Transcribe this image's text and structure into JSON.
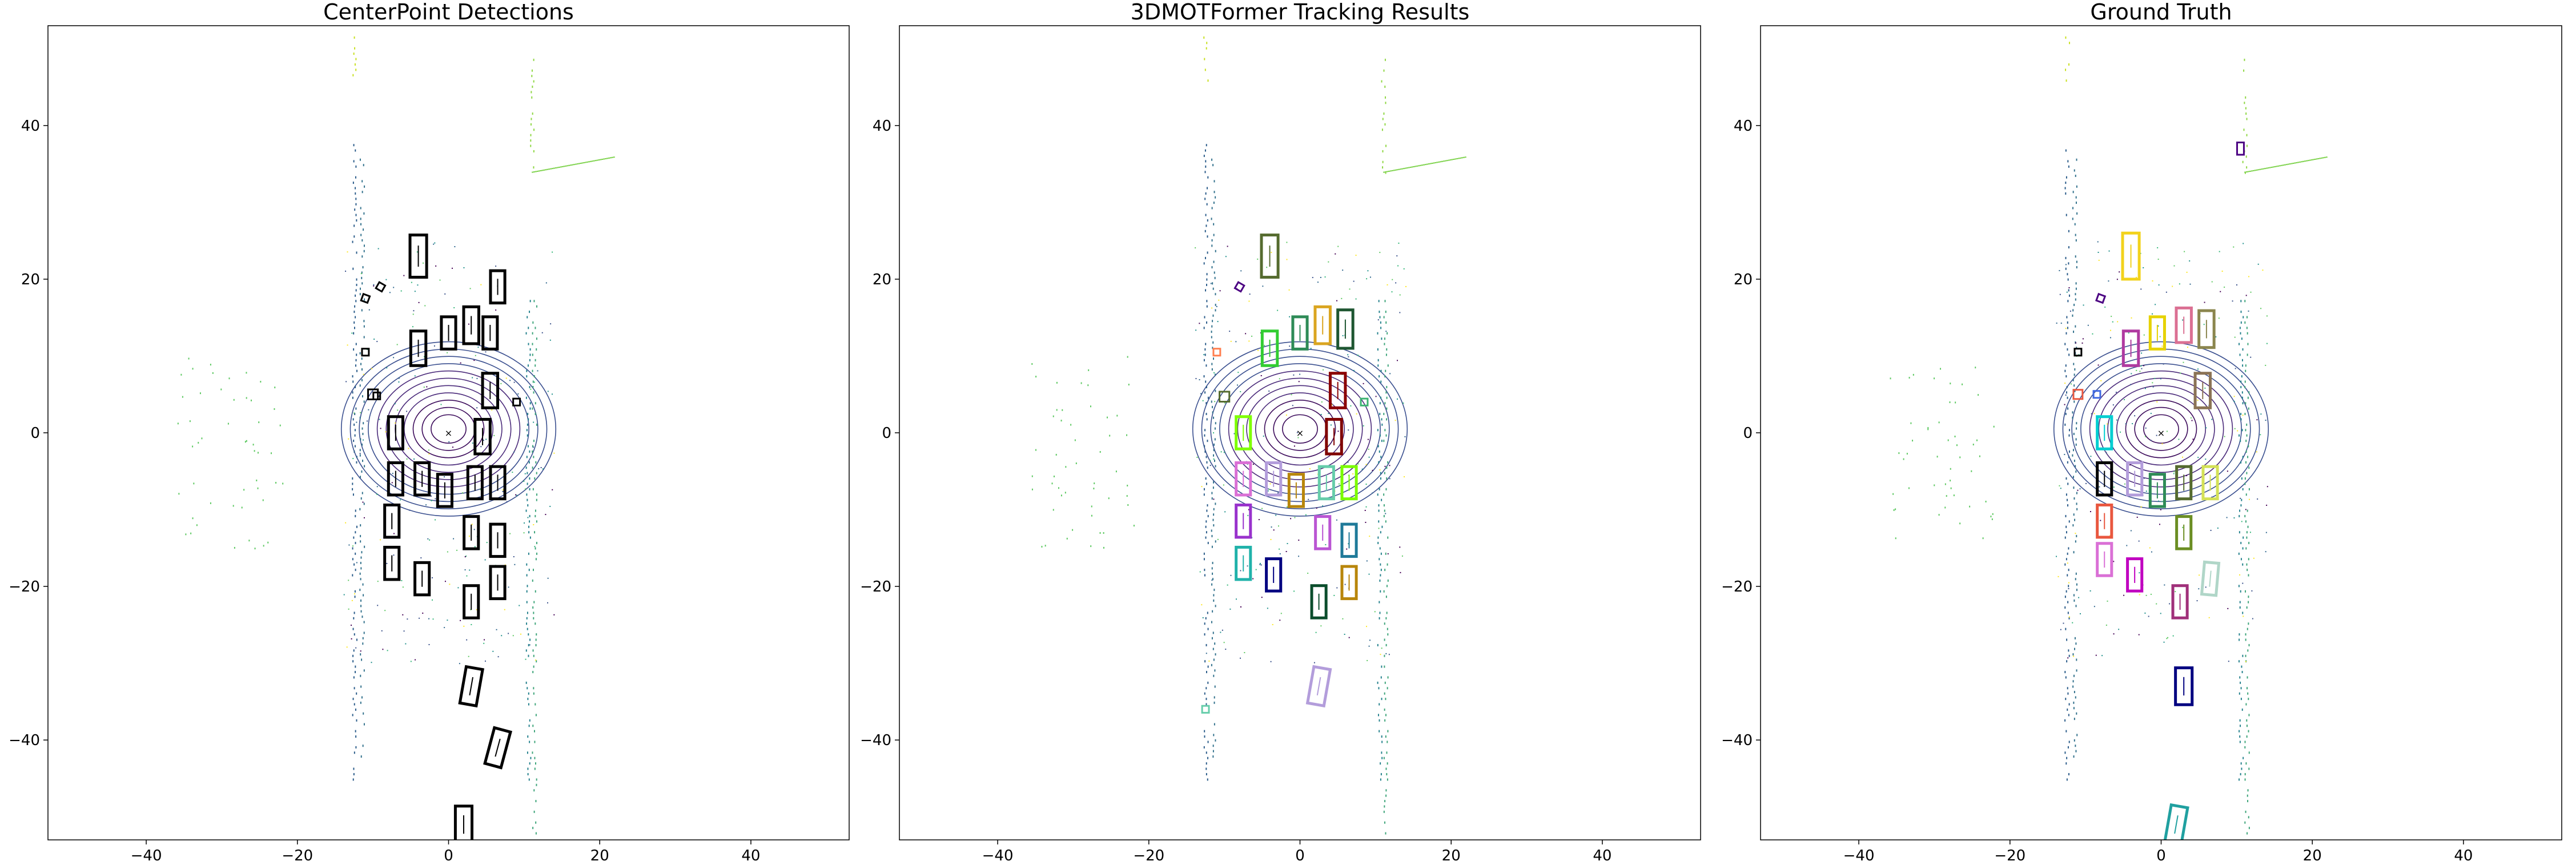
{
  "chart_data": [
    {
      "type": "scatter",
      "title": "CenterPoint Detections",
      "xlabel": "",
      "ylabel": "",
      "xlim": [
        -53,
        53
      ],
      "ylim": [
        -53,
        53
      ],
      "xticks": [
        -40,
        -20,
        0,
        20,
        40
      ],
      "yticks": [
        40,
        20,
        0,
        -20,
        -40
      ],
      "xtick_labels": [
        "−40",
        "−20",
        "0",
        "20",
        "40"
      ],
      "ytick_labels": [
        "40",
        "20",
        "0",
        "−20",
        "−40"
      ],
      "grid": false,
      "box_color": "#000000",
      "boxes": [
        {
          "x": -4,
          "y": 23,
          "w": 2.2,
          "l": 5.5,
          "angle": 0
        },
        {
          "x": -4,
          "y": 11,
          "w": 2.0,
          "l": 4.5,
          "angle": 0
        },
        {
          "x": 0,
          "y": 13,
          "w": 1.9,
          "l": 4.2,
          "angle": 0
        },
        {
          "x": 3,
          "y": 14,
          "w": 2.0,
          "l": 4.8,
          "angle": 0
        },
        {
          "x": 6.5,
          "y": 19,
          "w": 1.9,
          "l": 4.2,
          "angle": 0
        },
        {
          "x": 5.5,
          "y": 13,
          "w": 1.9,
          "l": 4.2,
          "angle": 0
        },
        {
          "x": 5.5,
          "y": 5.5,
          "w": 2.0,
          "l": 4.5,
          "angle": 0
        },
        {
          "x": -7,
          "y": 0,
          "w": 1.9,
          "l": 4.2,
          "angle": 0
        },
        {
          "x": 4.5,
          "y": -0.5,
          "w": 2.0,
          "l": 4.5,
          "angle": 0
        },
        {
          "x": -7,
          "y": -6,
          "w": 1.9,
          "l": 4.2,
          "angle": 0
        },
        {
          "x": -3.5,
          "y": -6,
          "w": 1.9,
          "l": 4.2,
          "angle": 0
        },
        {
          "x": -0.5,
          "y": -7.5,
          "w": 1.9,
          "l": 4.2,
          "angle": 0
        },
        {
          "x": 3.5,
          "y": -6.5,
          "w": 1.9,
          "l": 4.2,
          "angle": 0
        },
        {
          "x": 6.5,
          "y": -6.5,
          "w": 1.9,
          "l": 4.2,
          "angle": 0
        },
        {
          "x": -7.5,
          "y": -11.5,
          "w": 1.9,
          "l": 4.2,
          "angle": 0
        },
        {
          "x": 3,
          "y": -13,
          "w": 1.9,
          "l": 4.2,
          "angle": 0
        },
        {
          "x": 6.5,
          "y": -14,
          "w": 1.9,
          "l": 4.2,
          "angle": 0
        },
        {
          "x": -7.5,
          "y": -17,
          "w": 1.9,
          "l": 4.2,
          "angle": 0
        },
        {
          "x": -3.5,
          "y": -19,
          "w": 1.9,
          "l": 4.2,
          "angle": 0
        },
        {
          "x": 6.5,
          "y": -19.5,
          "w": 1.9,
          "l": 4.2,
          "angle": 0
        },
        {
          "x": 3,
          "y": -22,
          "w": 1.9,
          "l": 4.2,
          "angle": 0
        },
        {
          "x": 3,
          "y": -33,
          "w": 2.2,
          "l": 4.8,
          "angle": 10
        },
        {
          "x": 6.5,
          "y": -41,
          "w": 2.2,
          "l": 4.8,
          "angle": 15
        },
        {
          "x": 2,
          "y": -51,
          "w": 2.2,
          "l": 4.8,
          "angle": 0
        },
        {
          "x": -9,
          "y": 19,
          "w": 0.9,
          "l": 0.9,
          "angle": 30
        },
        {
          "x": -11,
          "y": 17.5,
          "w": 0.9,
          "l": 0.9,
          "angle": 20
        },
        {
          "x": -11,
          "y": 10.5,
          "w": 0.9,
          "l": 0.9,
          "angle": 0
        },
        {
          "x": -10,
          "y": 5,
          "w": 1.3,
          "l": 1.3,
          "angle": 0
        },
        {
          "x": -9.5,
          "y": 4.8,
          "w": 0.9,
          "l": 0.9,
          "angle": 0
        },
        {
          "x": 9,
          "y": 4,
          "w": 0.9,
          "l": 0.9,
          "angle": 0
        }
      ]
    },
    {
      "type": "scatter",
      "title": "3DMOTFormer Tracking Results",
      "xlabel": "",
      "ylabel": "",
      "xlim": [
        -53,
        53
      ],
      "ylim": [
        -53,
        53
      ],
      "xticks": [
        -40,
        -20,
        0,
        20,
        40
      ],
      "yticks": [
        40,
        20,
        0,
        -20,
        -40
      ],
      "xtick_labels": [
        "−40",
        "−20",
        "0",
        "20",
        "40"
      ],
      "ytick_labels": [
        "40",
        "20",
        "0",
        "−20",
        "−40"
      ],
      "grid": false,
      "boxes": [
        {
          "x": -4,
          "y": 23,
          "w": 2.2,
          "l": 5.5,
          "angle": 0,
          "color": "#556b2f"
        },
        {
          "x": -4,
          "y": 11,
          "w": 2.0,
          "l": 4.5,
          "angle": 0,
          "color": "#32cd32"
        },
        {
          "x": 0,
          "y": 13,
          "w": 1.9,
          "l": 4.2,
          "angle": 0,
          "color": "#2e8b57"
        },
        {
          "x": 3,
          "y": 14,
          "w": 2.0,
          "l": 4.8,
          "angle": 0,
          "color": "#daa520"
        },
        {
          "x": 6,
          "y": 13.5,
          "w": 2.0,
          "l": 5.0,
          "angle": 0,
          "color": "#1e5631"
        },
        {
          "x": 5,
          "y": 5.5,
          "w": 2.0,
          "l": 4.5,
          "angle": 0,
          "color": "#8b0000"
        },
        {
          "x": -7.5,
          "y": 0,
          "w": 1.9,
          "l": 4.2,
          "angle": 0,
          "color": "#7fff00"
        },
        {
          "x": 4.5,
          "y": -0.5,
          "w": 2.0,
          "l": 4.5,
          "angle": 0,
          "color": "#800000"
        },
        {
          "x": -7.5,
          "y": -6,
          "w": 1.9,
          "l": 4.2,
          "angle": 0,
          "color": "#da70d6"
        },
        {
          "x": -3.5,
          "y": -6,
          "w": 1.9,
          "l": 4.2,
          "angle": 0,
          "color": "#b39ddb"
        },
        {
          "x": -0.5,
          "y": -7.5,
          "w": 1.9,
          "l": 4.2,
          "angle": 0,
          "color": "#b8860b"
        },
        {
          "x": 3.5,
          "y": -6.5,
          "w": 1.9,
          "l": 4.2,
          "angle": 0,
          "color": "#66cdaa"
        },
        {
          "x": 6.5,
          "y": -6.5,
          "w": 1.9,
          "l": 4.2,
          "angle": 0,
          "color": "#7cfc00"
        },
        {
          "x": -7.5,
          "y": -11.5,
          "w": 1.9,
          "l": 4.2,
          "angle": 0,
          "color": "#9932cc"
        },
        {
          "x": 3,
          "y": -13,
          "w": 1.9,
          "l": 4.2,
          "angle": 0,
          "color": "#ba55d3"
        },
        {
          "x": 6.5,
          "y": -14,
          "w": 1.9,
          "l": 4.2,
          "angle": 0,
          "color": "#1f7a99"
        },
        {
          "x": -7.5,
          "y": -17,
          "w": 1.9,
          "l": 4.2,
          "angle": 0,
          "color": "#20b2aa"
        },
        {
          "x": -3.5,
          "y": -18.5,
          "w": 1.9,
          "l": 4.2,
          "angle": 0,
          "color": "#000080"
        },
        {
          "x": 6.5,
          "y": -19.5,
          "w": 1.9,
          "l": 4.2,
          "angle": 0,
          "color": "#b8860b"
        },
        {
          "x": 2.5,
          "y": -22,
          "w": 1.9,
          "l": 4.2,
          "angle": 0,
          "color": "#0b4d2c"
        },
        {
          "x": 2.5,
          "y": -33,
          "w": 2.2,
          "l": 4.8,
          "angle": 10,
          "color": "#b39ddb"
        },
        {
          "x": -12.5,
          "y": -36,
          "w": 0.9,
          "l": 0.9,
          "angle": 0,
          "color": "#66cdaa"
        },
        {
          "x": -8,
          "y": 19,
          "w": 0.9,
          "l": 0.9,
          "angle": 30,
          "color": "#4b0082"
        },
        {
          "x": -11,
          "y": 10.5,
          "w": 0.9,
          "l": 0.9,
          "angle": 0,
          "color": "#ff7f50"
        },
        {
          "x": -10,
          "y": 4.7,
          "w": 1.3,
          "l": 1.3,
          "angle": 0,
          "color": "#556b2f"
        },
        {
          "x": 8.5,
          "y": 4,
          "w": 0.9,
          "l": 0.9,
          "angle": 0,
          "color": "#3cb371"
        }
      ]
    },
    {
      "type": "scatter",
      "title": "Ground Truth",
      "xlabel": "",
      "ylabel": "",
      "xlim": [
        -53,
        53
      ],
      "ylim": [
        -53,
        53
      ],
      "xticks": [
        -40,
        -20,
        0,
        20,
        40
      ],
      "yticks": [
        40,
        20,
        0,
        -20,
        -40
      ],
      "xtick_labels": [
        "−40",
        "−20",
        "0",
        "20",
        "40"
      ],
      "ytick_labels": [
        "40",
        "20",
        "0",
        "−20",
        "−40"
      ],
      "grid": false,
      "boxes": [
        {
          "x": -4,
          "y": 23,
          "w": 2.2,
          "l": 6.0,
          "angle": 0,
          "color": "#f2d21b"
        },
        {
          "x": -4,
          "y": 11,
          "w": 2.0,
          "l": 4.5,
          "angle": 0,
          "color": "#b03aa0"
        },
        {
          "x": -0.5,
          "y": 13,
          "w": 1.9,
          "l": 4.2,
          "angle": 0,
          "color": "#e6d200"
        },
        {
          "x": 3,
          "y": 14,
          "w": 2.0,
          "l": 4.5,
          "angle": 0,
          "color": "#db7093"
        },
        {
          "x": 6,
          "y": 13.5,
          "w": 2.0,
          "l": 4.8,
          "angle": 0,
          "color": "#8b864e"
        },
        {
          "x": 5.5,
          "y": 5.5,
          "w": 2.0,
          "l": 4.5,
          "angle": 0,
          "color": "#8b7355"
        },
        {
          "x": -7.5,
          "y": 0,
          "w": 1.9,
          "l": 4.2,
          "angle": 0,
          "color": "#00ced1"
        },
        {
          "x": -7.5,
          "y": -6,
          "w": 1.9,
          "l": 4.2,
          "angle": 0,
          "color": "#000000"
        },
        {
          "x": -3.5,
          "y": -6,
          "w": 1.9,
          "l": 4.2,
          "angle": 0,
          "color": "#b39ddb"
        },
        {
          "x": -0.5,
          "y": -7.5,
          "w": 1.9,
          "l": 4.2,
          "angle": 0,
          "color": "#2e8b57"
        },
        {
          "x": 3,
          "y": -6.5,
          "w": 1.9,
          "l": 4.2,
          "angle": 0,
          "color": "#556b2f"
        },
        {
          "x": 6.5,
          "y": -6.5,
          "w": 1.9,
          "l": 4.2,
          "angle": 0,
          "color": "#d4e157"
        },
        {
          "x": -7.5,
          "y": -11.5,
          "w": 1.9,
          "l": 4.2,
          "angle": 0,
          "color": "#e9573f"
        },
        {
          "x": 3,
          "y": -13,
          "w": 1.9,
          "l": 4.2,
          "angle": 0,
          "color": "#6b8e23"
        },
        {
          "x": -7.5,
          "y": -16.5,
          "w": 1.9,
          "l": 4.2,
          "angle": 0,
          "color": "#da70d6"
        },
        {
          "x": -3.5,
          "y": -18.5,
          "w": 1.9,
          "l": 4.2,
          "angle": 0,
          "color": "#c000c0"
        },
        {
          "x": 6.5,
          "y": -19,
          "w": 1.9,
          "l": 4.2,
          "angle": 5,
          "color": "#b0d6c8"
        },
        {
          "x": 2.5,
          "y": -22,
          "w": 1.9,
          "l": 4.2,
          "angle": 0,
          "color": "#a0307a"
        },
        {
          "x": 3,
          "y": -33,
          "w": 2.2,
          "l": 4.8,
          "angle": 0,
          "color": "#000080"
        },
        {
          "x": 2,
          "y": -51,
          "w": 2.2,
          "l": 4.8,
          "angle": 10,
          "color": "#20a0a0"
        },
        {
          "x": 10.5,
          "y": 37,
          "w": 0.9,
          "l": 1.6,
          "angle": 0,
          "color": "#4b0082"
        },
        {
          "x": -8,
          "y": 17.5,
          "w": 0.9,
          "l": 0.9,
          "angle": 20,
          "color": "#4b0082"
        },
        {
          "x": -11,
          "y": 10.5,
          "w": 0.9,
          "l": 0.9,
          "angle": 0,
          "color": "#000000"
        },
        {
          "x": -11,
          "y": 5,
          "w": 1.2,
          "l": 1.2,
          "angle": 0,
          "color": "#e9573f"
        },
        {
          "x": -8.5,
          "y": 5,
          "w": 0.9,
          "l": 0.9,
          "angle": 0,
          "color": "#4169e1"
        }
      ]
    }
  ]
}
